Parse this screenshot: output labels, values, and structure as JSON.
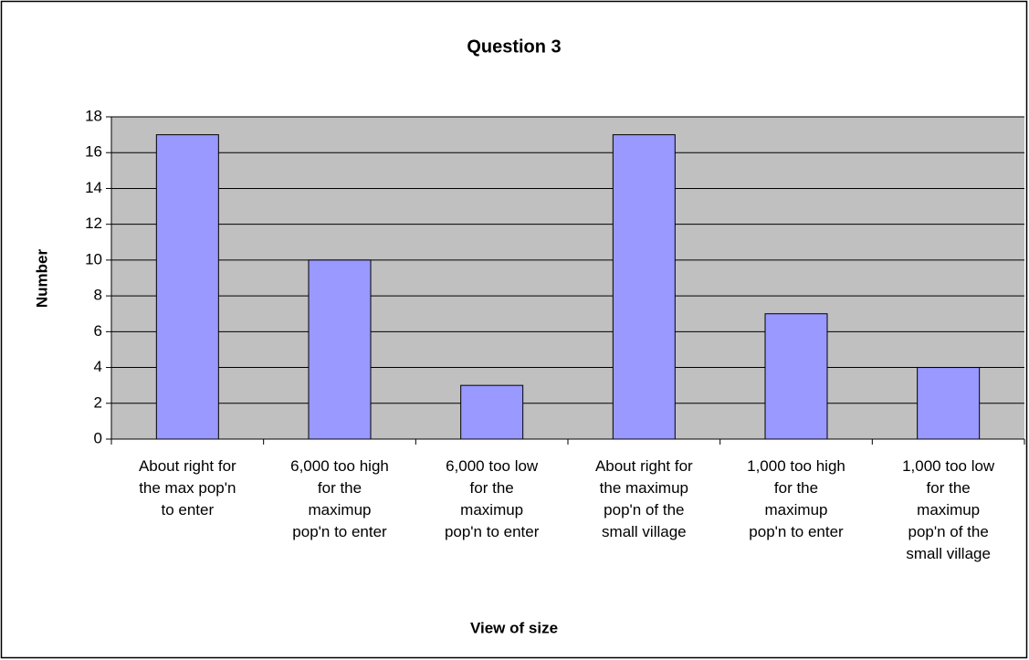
{
  "chart_data": {
    "type": "bar",
    "title": "Question 3",
    "x_label": "View of size",
    "y_label": "Number",
    "categories": [
      "About right for\nthe max pop'n\nto enter",
      "6,000 too high\nfor the\nmaximup\npop'n to enter",
      "6,000 too low\nfor the\nmaximup\npop'n to enter",
      "About right for\nthe maximup\npop'n of the\nsmall village",
      "1,000 too high\nfor the\nmaximup\npop'n to enter",
      "1,000 too low\nfor the\nmaximup\npop'n of the\nsmall village"
    ],
    "values": [
      17,
      10,
      3,
      17,
      7,
      4
    ],
    "color": "#9999ff",
    "ylim": [
      0,
      18
    ],
    "yticks": [
      0,
      2,
      4,
      6,
      8,
      10,
      12,
      14,
      16,
      18
    ],
    "grid": true
  }
}
